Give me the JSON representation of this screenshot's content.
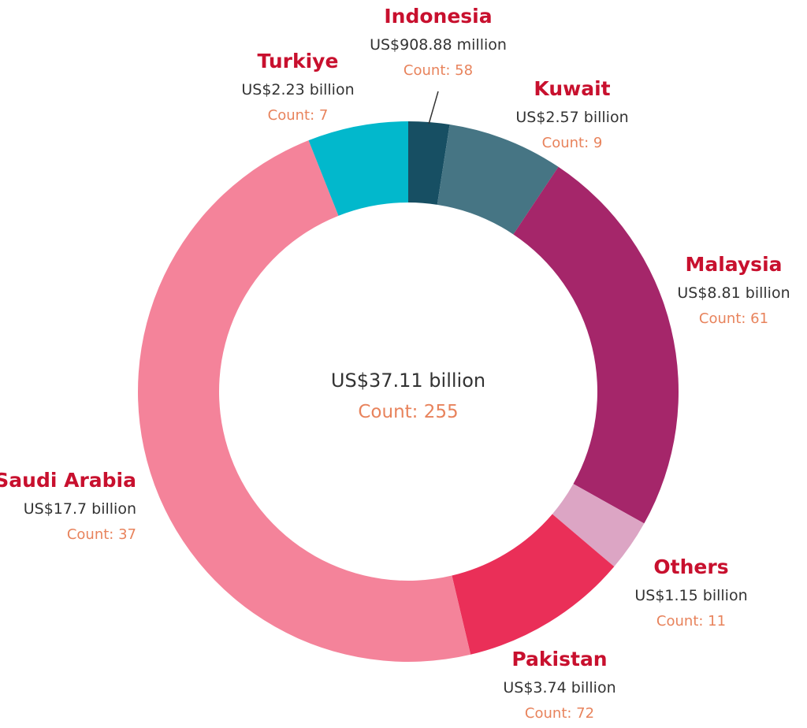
{
  "chart_data": {
    "type": "pie",
    "variant": "donut",
    "center": {
      "value": "US$37.11 billion",
      "count": "Count: 255"
    },
    "slices": [
      {
        "name": "Indonesia",
        "value": 0.90888,
        "value_label": "US$908.88 million",
        "count_label": "Count: 58",
        "color": "#174f63"
      },
      {
        "name": "Kuwait",
        "value": 2.57,
        "value_label": "US$2.57 billion",
        "count_label": "Count: 9",
        "color": "#467584"
      },
      {
        "name": "Malaysia",
        "value": 8.81,
        "value_label": "US$8.81 billion",
        "count_label": "Count: 61",
        "color": "#a5266a"
      },
      {
        "name": "Others",
        "value": 1.15,
        "value_label": "US$1.15 billion",
        "count_label": "Count: 11",
        "color": "#dca5c4"
      },
      {
        "name": "Pakistan",
        "value": 3.74,
        "value_label": "US$3.74 billion",
        "count_label": "Count: 72",
        "color": "#ea2f58"
      },
      {
        "name": "Saudi Arabia",
        "value": 17.7,
        "value_label": "US$17.7 billion",
        "count_label": "Count: 37",
        "color": "#f4839a"
      },
      {
        "name": "Turkiye",
        "value": 2.23,
        "value_label": "US$2.23 billion",
        "count_label": "Count: 7",
        "color": "#02b8cc"
      }
    ],
    "colors": {
      "country": "#c8102e",
      "count": "#e8835c"
    }
  }
}
